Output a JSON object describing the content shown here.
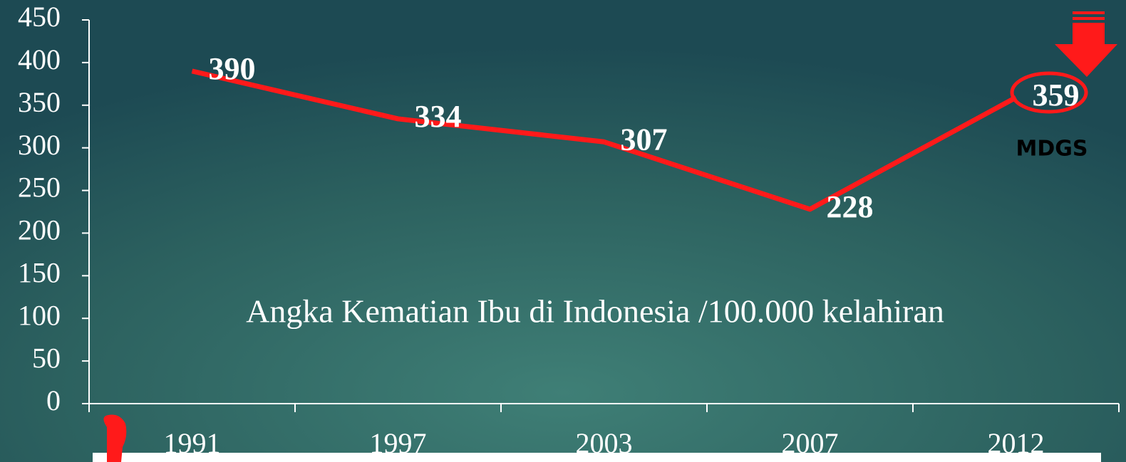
{
  "chart_data": {
    "type": "line",
    "categories": [
      "1991",
      "1997",
      "2003",
      "2007",
      "2012"
    ],
    "values": [
      390,
      334,
      307,
      228,
      359
    ],
    "color": "#ff1a1a",
    "ylim": [
      0,
      450
    ],
    "yticks": [
      0,
      50,
      100,
      150,
      200,
      250,
      300,
      350,
      400,
      450
    ],
    "annotations": [
      "Angka Kematian Ibu di Indonesia /100.000 kelahiran",
      "MDGS"
    ]
  }
}
